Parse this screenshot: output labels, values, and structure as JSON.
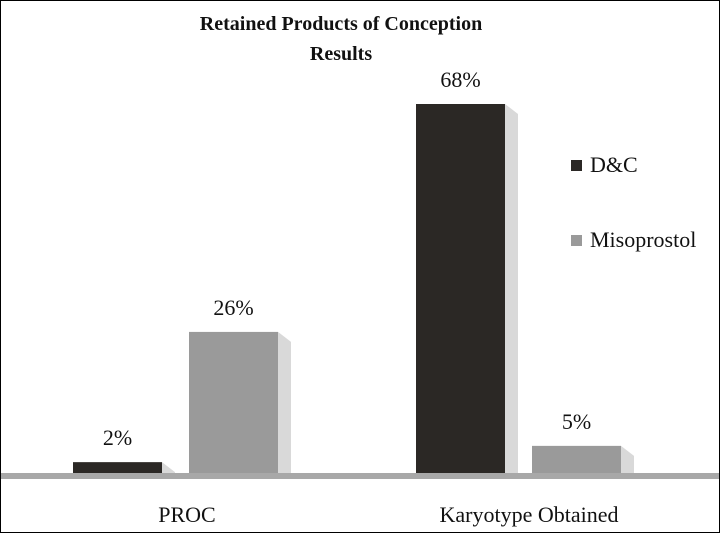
{
  "chart_data": {
    "type": "bar",
    "title_lines": [
      "Retained Products of Conception",
      "Results"
    ],
    "xlabel": "",
    "ylabel": "",
    "categories": [
      "PROC",
      "Karyotype Obtained"
    ],
    "series": [
      {
        "name": "D&C",
        "values": [
          2,
          68
        ],
        "labels": [
          "2%",
          "68%"
        ],
        "color": "#2b2825"
      },
      {
        "name": "Misoprostol",
        "values": [
          26,
          5
        ],
        "labels": [
          "26%",
          "5%"
        ],
        "color": "#9a9a9a"
      }
    ],
    "ylim": [
      0,
      70
    ],
    "grid": false,
    "legend_position": "right",
    "floor_color": "#a8a8a8"
  }
}
